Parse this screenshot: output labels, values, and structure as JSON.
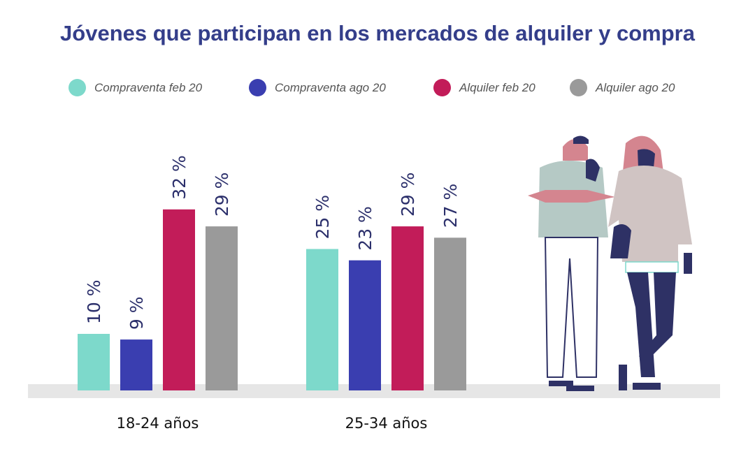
{
  "chart_data": {
    "type": "bar",
    "title": "Jóvenes que participan en los mercados de alquiler y compra",
    "categories": [
      "18-24 años",
      "25-34 años"
    ],
    "series": [
      {
        "name": "Compraventa feb 20",
        "color": "#7dd9cb",
        "values": [
          10,
          25
        ]
      },
      {
        "name": "Compraventa ago 20",
        "color": "#3a3eb0",
        "values": [
          9,
          23
        ]
      },
      {
        "name": "Alquiler feb 20",
        "color": "#c21c59",
        "values": [
          32,
          29
        ]
      },
      {
        "name": "Alquiler ago 20",
        "color": "#9a9a9a",
        "values": [
          29,
          27
        ]
      }
    ],
    "value_suffix": " %",
    "legend_placement": "top",
    "grid": false,
    "ylim": [
      0,
      35
    ]
  }
}
